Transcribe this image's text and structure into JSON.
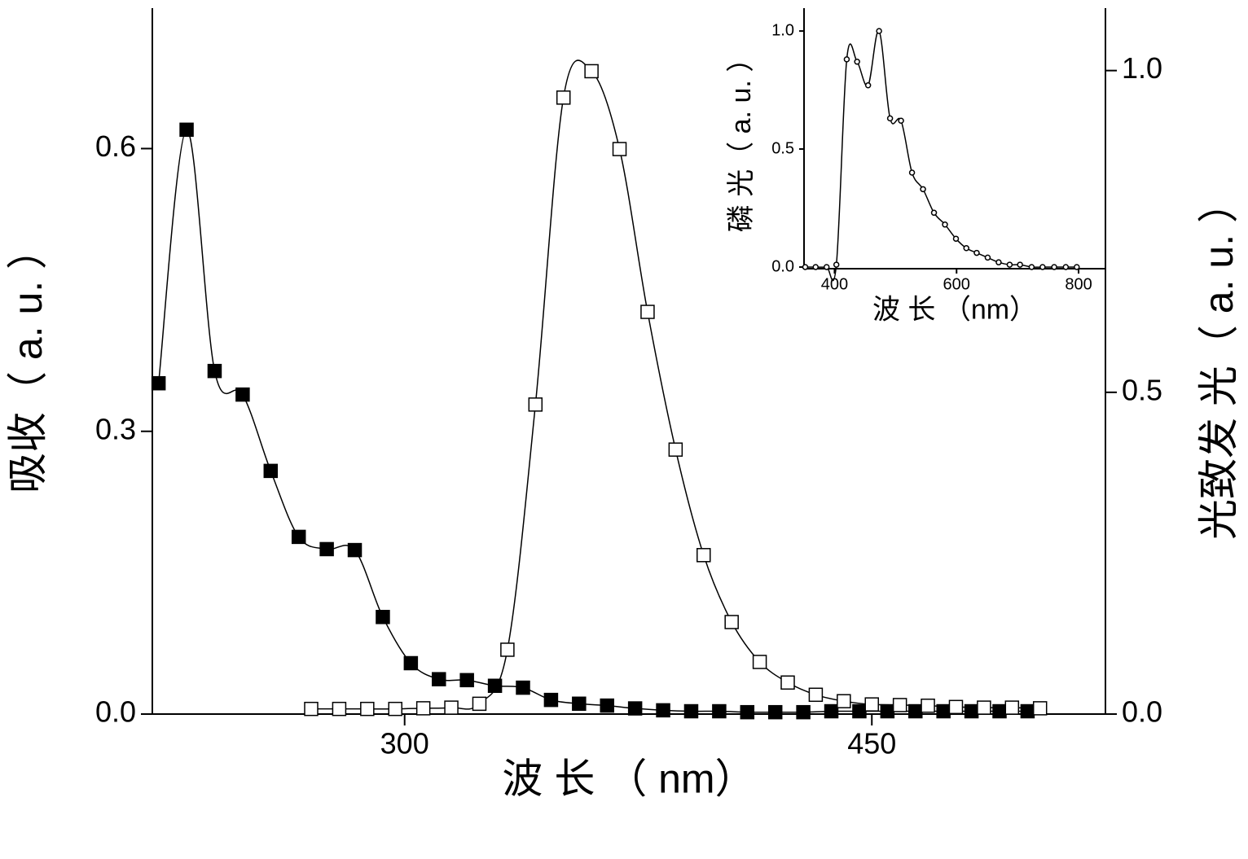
{
  "chart_data": [
    {
      "type": "line",
      "x_label": "波 长 （ nm）",
      "y_label": "吸收（ a. u. ）",
      "y2_label": "光致发 光（ a. u. ）",
      "xlim": [
        219,
        525
      ],
      "xticks": [
        300,
        450
      ],
      "ylim": [
        0,
        0.749
      ],
      "yticks": [
        {
          "value": 0,
          "label": "0.0"
        },
        0.3,
        0.6
      ],
      "y2lim": [
        0,
        1.097
      ],
      "y2ticks": [
        {
          "value": 0,
          "label": "0.0"
        },
        0.5,
        {
          "value": 1,
          "label": "1.0"
        }
      ],
      "series": [
        {
          "color": "#000000",
          "marker": "square-filled",
          "x": [
            221,
            230,
            239,
            248,
            257,
            266,
            275,
            284,
            293,
            302,
            311,
            320,
            329,
            338,
            347,
            356,
            365,
            374,
            383,
            392,
            401,
            410,
            419,
            428,
            437,
            446,
            455,
            464,
            473,
            482,
            491,
            500
          ],
          "values": [
            0.351,
            0.62,
            0.364,
            0.339,
            0.258,
            0.188,
            0.175,
            0.174,
            0.103,
            0.054,
            0.037,
            0.036,
            0.03,
            0.028,
            0.015,
            0.011,
            0.009,
            0.006,
            0.004,
            0.003,
            0.003,
            0.002,
            0.002,
            0.002,
            0.003,
            0.003,
            0.003,
            0.003,
            0.003,
            0.003,
            0.003,
            0.003
          ]
        },
        {
          "color": "#000000",
          "marker": "square-open",
          "axis": "y2",
          "x": [
            270,
            279,
            288,
            297,
            306,
            315,
            324,
            333,
            342,
            351,
            360,
            369,
            378,
            387,
            396,
            405,
            414,
            423,
            432,
            441,
            450,
            459,
            468,
            477,
            486,
            495,
            504
          ],
          "values": [
            0.008,
            0.008,
            0.008,
            0.008,
            0.009,
            0.01,
            0.016,
            0.1,
            0.481,
            0.958,
            0.999,
            0.878,
            0.625,
            0.411,
            0.247,
            0.143,
            0.081,
            0.049,
            0.03,
            0.02,
            0.015,
            0.014,
            0.013,
            0.011,
            0.01,
            0.01,
            0.009
          ]
        }
      ]
    },
    {
      "type": "line",
      "x_label": "波 长 （nm）",
      "y_label": "磷 光（ a. u. ）",
      "xlim": [
        350,
        844
      ],
      "xticks": [
        400,
        600,
        800
      ],
      "ylim": [
        -0.007,
        1.097
      ],
      "yticks": [
        {
          "value": 0,
          "label": "0.0"
        },
        0.5,
        {
          "value": 1,
          "label": "1.0"
        }
      ],
      "series": [
        {
          "color": "#000000",
          "marker": "circle-open",
          "x": [
            352,
            369,
            387,
            403,
            420,
            437,
            455,
            473,
            491,
            509,
            527,
            545,
            563,
            581,
            599,
            616,
            633,
            651,
            669,
            687,
            704,
            723,
            741,
            760,
            779,
            797
          ],
          "values": [
            0,
            0,
            0,
            0.01,
            0.88,
            0.87,
            0.77,
            1.0,
            0.63,
            0.62,
            0.4,
            0.33,
            0.23,
            0.18,
            0.12,
            0.08,
            0.06,
            0.04,
            0.02,
            0.01,
            0.01,
            0,
            0,
            0,
            0,
            0
          ]
        }
      ]
    }
  ]
}
